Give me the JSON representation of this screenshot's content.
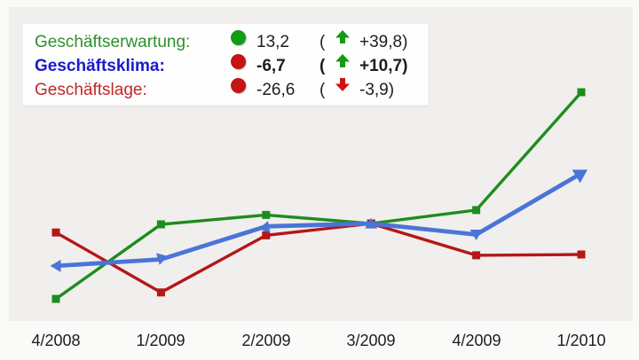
{
  "legend": {
    "rows": [
      {
        "label": "Geschäftserwartung:",
        "value": "13,2",
        "open_paren": "(",
        "trend": "up",
        "change": "+39,8",
        "close_paren": ")",
        "dot_color": "#119c17",
        "trend_color": "#149a14",
        "label_color": "#2f8f2f"
      },
      {
        "label": "Geschäftsklima:",
        "value": "-6,7",
        "open_paren": "(",
        "trend": "up",
        "change": "+10,7",
        "close_paren": ")",
        "dot_color": "#c41414",
        "trend_color": "#149a14",
        "label_color": "#1a1ace"
      },
      {
        "label": "Geschäftslage:",
        "value": "-26,6",
        "open_paren": "(",
        "trend": "down",
        "change": "-3,9",
        "close_paren": ")",
        "dot_color": "#c41414",
        "trend_color": "#cc1414",
        "label_color": "#c22727"
      }
    ]
  },
  "chart_data": {
    "type": "line",
    "categories": [
      "4/2008",
      "1/2009",
      "2/2009",
      "3/2009",
      "4/2009",
      "1/2010"
    ],
    "series": [
      {
        "name": "Geschäftserwartung",
        "color": "#1f8c1f",
        "marker": "square",
        "values": [
          -37.5,
          -19.2,
          -16.9,
          -19.0,
          -15.7,
          13.2
        ]
      },
      {
        "name": "Geschäftsklima",
        "color": "#4a74d8",
        "marker": "triangle",
        "values": [
          -29.4,
          -27.8,
          -19.7,
          -19.0,
          -21.7,
          -6.7
        ]
      },
      {
        "name": "Geschäftslage",
        "color": "#b51717",
        "marker": "square",
        "values": [
          -21.2,
          -35.9,
          -21.9,
          -19.0,
          -26.8,
          -26.6
        ]
      }
    ],
    "ylim": [
      -45,
      20
    ],
    "grid": false,
    "legend_position": "top-left",
    "title": "",
    "xlabel": "",
    "ylabel": ""
  },
  "colors": {
    "panel_background": "#f0efed",
    "page_background": "#fafaf9",
    "legend_background": "#fefefe",
    "text": "#1d1d1d"
  }
}
